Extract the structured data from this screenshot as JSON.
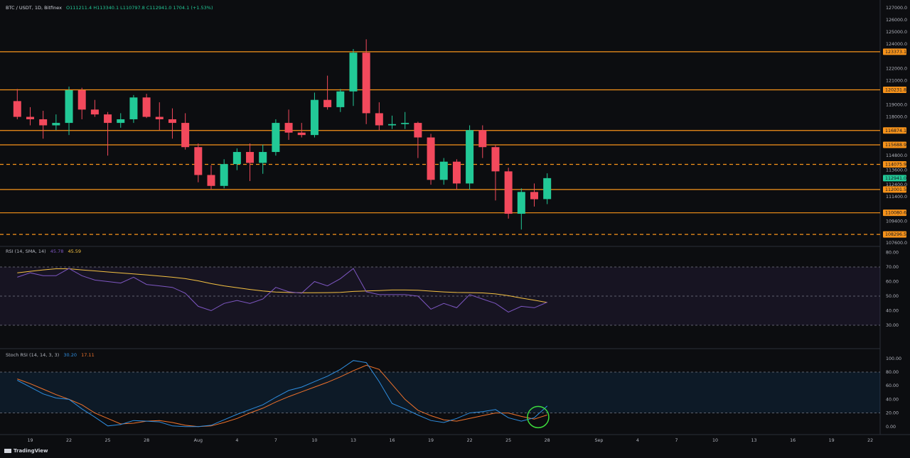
{
  "header": {
    "symbol": "BTC / USDT, 1D, Bitfinex",
    "ohlc_text": "O111211.4  H113340.1  L110797.8  C112941.0  1704.1 (+1.53%)"
  },
  "colors": {
    "background": "#0c0d10",
    "up": "#22c997",
    "down": "#f2495c",
    "level_line": "#f7931a",
    "rsi_line": "#7e57c2",
    "rsi_sma": "#f5c242",
    "stoch_k": "#2f8ee0",
    "stoch_d": "#f0722b",
    "highlight_circle": "#3ddc3d"
  },
  "branding": {
    "logo_text": "TradingView"
  },
  "chart_data": [
    {
      "type": "candlestick",
      "title": "BTC / USDT, 1D, Bitfinex",
      "ylim": [
        107600,
        127000
      ],
      "y_ticks": [
        127000,
        126000,
        125000,
        124000,
        122000,
        121000,
        119000,
        118000,
        114800,
        113600,
        112400,
        111400,
        109400,
        107600
      ],
      "x_tick_labels": [
        {
          "label": "19",
          "day": 19
        },
        {
          "label": "22",
          "day": 22
        },
        {
          "label": "25",
          "day": 25
        },
        {
          "label": "28",
          "day": 28
        },
        {
          "label": "Aug",
          "day": 32
        },
        {
          "label": "4",
          "day": 35
        },
        {
          "label": "7",
          "day": 38
        },
        {
          "label": "10",
          "day": 41
        },
        {
          "label": "13",
          "day": 44
        },
        {
          "label": "16",
          "day": 47
        },
        {
          "label": "19",
          "day": 50
        },
        {
          "label": "22",
          "day": 53
        },
        {
          "label": "25",
          "day": 56
        },
        {
          "label": "28",
          "day": 59
        },
        {
          "label": "Sep",
          "day": 63
        },
        {
          "label": "4",
          "day": 66
        },
        {
          "label": "7",
          "day": 69
        },
        {
          "label": "10",
          "day": 72
        },
        {
          "label": "13",
          "day": 75
        },
        {
          "label": "16",
          "day": 78
        },
        {
          "label": "19",
          "day": 81
        },
        {
          "label": "22",
          "day": 84
        }
      ],
      "candles": [
        {
          "day": 18,
          "o": 119300,
          "h": 120300,
          "l": 117800,
          "c": 118000
        },
        {
          "day": 19,
          "o": 118000,
          "h": 118800,
          "l": 117300,
          "c": 117800
        },
        {
          "day": 20,
          "o": 117800,
          "h": 118500,
          "l": 116200,
          "c": 117300
        },
        {
          "day": 21,
          "o": 117300,
          "h": 118200,
          "l": 116900,
          "c": 117500
        },
        {
          "day": 22,
          "o": 117500,
          "h": 120500,
          "l": 116500,
          "c": 120200
        },
        {
          "day": 23,
          "o": 120200,
          "h": 120400,
          "l": 117800,
          "c": 118600
        },
        {
          "day": 24,
          "o": 118600,
          "h": 119400,
          "l": 118000,
          "c": 118200
        },
        {
          "day": 25,
          "o": 118200,
          "h": 118400,
          "l": 114800,
          "c": 117500
        },
        {
          "day": 26,
          "o": 117500,
          "h": 118300,
          "l": 117100,
          "c": 117800
        },
        {
          "day": 27,
          "o": 117800,
          "h": 119800,
          "l": 117500,
          "c": 119600
        },
        {
          "day": 28,
          "o": 119600,
          "h": 119900,
          "l": 117900,
          "c": 118000
        },
        {
          "day": 29,
          "o": 118000,
          "h": 119200,
          "l": 116900,
          "c": 117800
        },
        {
          "day": 30,
          "o": 117800,
          "h": 118700,
          "l": 116200,
          "c": 117500
        },
        {
          "day": 31,
          "o": 117500,
          "h": 118300,
          "l": 115300,
          "c": 115500
        },
        {
          "day": 32,
          "o": 115500,
          "h": 115800,
          "l": 112600,
          "c": 113200
        },
        {
          "day": 33,
          "o": 113200,
          "h": 114000,
          "l": 112000,
          "c": 112300
        },
        {
          "day": 34,
          "o": 112300,
          "h": 114500,
          "l": 112100,
          "c": 114100
        },
        {
          "day": 35,
          "o": 114100,
          "h": 115400,
          "l": 113600,
          "c": 115100
        },
        {
          "day": 36,
          "o": 115100,
          "h": 115800,
          "l": 112700,
          "c": 114200
        },
        {
          "day": 37,
          "o": 114200,
          "h": 115700,
          "l": 113300,
          "c": 115100
        },
        {
          "day": 38,
          "o": 115100,
          "h": 117800,
          "l": 114800,
          "c": 117500
        },
        {
          "day": 39,
          "o": 117500,
          "h": 118600,
          "l": 116100,
          "c": 116700
        },
        {
          "day": 40,
          "o": 116700,
          "h": 117500,
          "l": 116300,
          "c": 116500
        },
        {
          "day": 41,
          "o": 116500,
          "h": 120000,
          "l": 116300,
          "c": 119400
        },
        {
          "day": 42,
          "o": 119400,
          "h": 121400,
          "l": 118600,
          "c": 118800
        },
        {
          "day": 43,
          "o": 118800,
          "h": 120300,
          "l": 118400,
          "c": 120100
        },
        {
          "day": 44,
          "o": 120100,
          "h": 123600,
          "l": 118900,
          "c": 123300
        },
        {
          "day": 45,
          "o": 123300,
          "h": 124400,
          "l": 117400,
          "c": 118300
        },
        {
          "day": 46,
          "o": 118300,
          "h": 119200,
          "l": 116900,
          "c": 117300
        },
        {
          "day": 47,
          "o": 117300,
          "h": 118100,
          "l": 117000,
          "c": 117400
        },
        {
          "day": 48,
          "o": 117400,
          "h": 118400,
          "l": 117000,
          "c": 117500
        },
        {
          "day": 49,
          "o": 117500,
          "h": 117600,
          "l": 114600,
          "c": 116300
        },
        {
          "day": 50,
          "o": 116300,
          "h": 116600,
          "l": 112400,
          "c": 112800
        },
        {
          "day": 51,
          "o": 112800,
          "h": 114600,
          "l": 112400,
          "c": 114300
        },
        {
          "day": 52,
          "o": 114300,
          "h": 114500,
          "l": 112000,
          "c": 112500
        },
        {
          "day": 53,
          "o": 112500,
          "h": 117300,
          "l": 112000,
          "c": 116900
        },
        {
          "day": 54,
          "o": 116900,
          "h": 117300,
          "l": 114600,
          "c": 115500
        },
        {
          "day": 55,
          "o": 115500,
          "h": 115700,
          "l": 111100,
          "c": 113500
        },
        {
          "day": 56,
          "o": 113500,
          "h": 113800,
          "l": 109600,
          "c": 110000
        },
        {
          "day": 57,
          "o": 110000,
          "h": 112100,
          "l": 108700,
          "c": 111800
        },
        {
          "day": 58,
          "o": 111800,
          "h": 112500,
          "l": 110600,
          "c": 111200
        },
        {
          "day": 59,
          "o": 111211.4,
          "h": 113340.1,
          "l": 110797.8,
          "c": 112941.0
        }
      ],
      "horizontal_levels": [
        {
          "value": 123373.1,
          "label": "123373.1",
          "style": "solid"
        },
        {
          "value": 120231.8,
          "label": "120231.8",
          "style": "solid"
        },
        {
          "value": 116874.1,
          "label": "116874.1",
          "style": "solid"
        },
        {
          "value": 115688.9,
          "label": "115688.9",
          "style": "solid"
        },
        {
          "value": 114075.9,
          "label": "114075.9",
          "style": "dashed"
        },
        {
          "value": 112001.5,
          "label": "112001.5",
          "style": "solid"
        },
        {
          "value": 110080.6,
          "label": "110080.6",
          "style": "solid"
        },
        {
          "value": 108296.5,
          "label": "108296.5",
          "style": "dashed"
        }
      ],
      "last_price": {
        "value": 112941.0,
        "label": "112941.0"
      }
    },
    {
      "type": "line",
      "title": "RSI (14, SMA, 14)",
      "legend": [
        {
          "text": "RSI (14, SMA, 14)",
          "color": "#b2b5be"
        },
        {
          "text": "45.78",
          "color": "#7e57c2"
        },
        {
          "text": "45.59",
          "color": "#f5c242"
        }
      ],
      "ylim": [
        30,
        80
      ],
      "y_ticks": [
        80,
        70,
        60,
        50,
        40,
        30
      ],
      "band": [
        30,
        70
      ],
      "dashed_levels": [
        70,
        50,
        30
      ],
      "x": [
        18,
        19,
        20,
        21,
        22,
        23,
        24,
        25,
        26,
        27,
        28,
        29,
        30,
        31,
        32,
        33,
        34,
        35,
        36,
        37,
        38,
        39,
        40,
        41,
        42,
        43,
        44,
        45,
        46,
        47,
        48,
        49,
        50,
        51,
        52,
        53,
        54,
        55,
        56,
        57,
        58,
        59
      ],
      "series": [
        {
          "name": "RSI",
          "values": [
            63,
            66,
            64,
            64,
            69,
            64,
            61,
            60,
            59,
            63,
            58,
            57,
            56,
            52,
            43,
            40,
            45,
            47,
            45,
            48,
            56,
            53,
            52,
            60,
            57,
            62,
            69,
            53,
            51,
            51,
            51,
            50,
            41,
            45,
            42,
            51,
            48,
            45,
            39,
            43,
            42,
            45.78
          ]
        },
        {
          "name": "SMA",
          "values": [
            66,
            67,
            68,
            68.8,
            68.8,
            68,
            67.3,
            66.6,
            65.9,
            65.2,
            64.6,
            63.8,
            63,
            62,
            60.5,
            58.6,
            57,
            55.8,
            54.6,
            53.5,
            52.8,
            52.5,
            52.3,
            52.3,
            52.4,
            52.6,
            53.2,
            53.5,
            53.8,
            54.2,
            54.2,
            54,
            53.4,
            52.9,
            52.5,
            52.4,
            52.2,
            51.5,
            50.3,
            48.7,
            47.2,
            45.59
          ]
        }
      ]
    },
    {
      "type": "line",
      "title": "Stoch RSI (14, 14, 3, 3)",
      "legend": [
        {
          "text": "Stoch RSI (14, 14, 3, 3)",
          "color": "#b2b5be"
        },
        {
          "text": "30.20",
          "color": "#2f8ee0"
        },
        {
          "text": "17.11",
          "color": "#f0722b"
        }
      ],
      "ylim": [
        -5,
        105
      ],
      "y_ticks": [
        100,
        80,
        60,
        40,
        20,
        0
      ],
      "band": [
        20,
        80
      ],
      "dashed_levels": [
        80,
        20
      ],
      "x": [
        18,
        19,
        20,
        21,
        22,
        23,
        24,
        25,
        26,
        27,
        28,
        29,
        30,
        31,
        32,
        33,
        34,
        35,
        36,
        37,
        38,
        39,
        40,
        41,
        42,
        43,
        44,
        45,
        46,
        47,
        48,
        49,
        50,
        51,
        52,
        53,
        54,
        55,
        56,
        57,
        58,
        59
      ],
      "series": [
        {
          "name": "K",
          "values": [
            68,
            58,
            48,
            42,
            40,
            26,
            14,
            1,
            3,
            9,
            8,
            7,
            1,
            0,
            0,
            2,
            10,
            18,
            25,
            32,
            43,
            53,
            58,
            66,
            74,
            84,
            97,
            94,
            66,
            34,
            26,
            17,
            9,
            6,
            12,
            20,
            22,
            25,
            13,
            8,
            13,
            30.2
          ]
        },
        {
          "name": "D",
          "values": [
            70,
            63,
            55,
            47,
            40,
            32,
            20,
            12,
            4,
            5,
            8,
            9,
            6,
            2,
            0,
            1,
            6,
            12,
            20,
            27,
            36,
            44,
            51,
            58,
            65,
            73,
            82,
            90,
            84,
            62,
            40,
            24,
            16,
            10,
            8,
            12,
            16,
            20,
            20,
            15,
            11,
            17.11
          ]
        }
      ],
      "annotation": {
        "shape": "circle",
        "day": 58.3,
        "value": 14,
        "color": "#3ddc3d"
      }
    }
  ]
}
